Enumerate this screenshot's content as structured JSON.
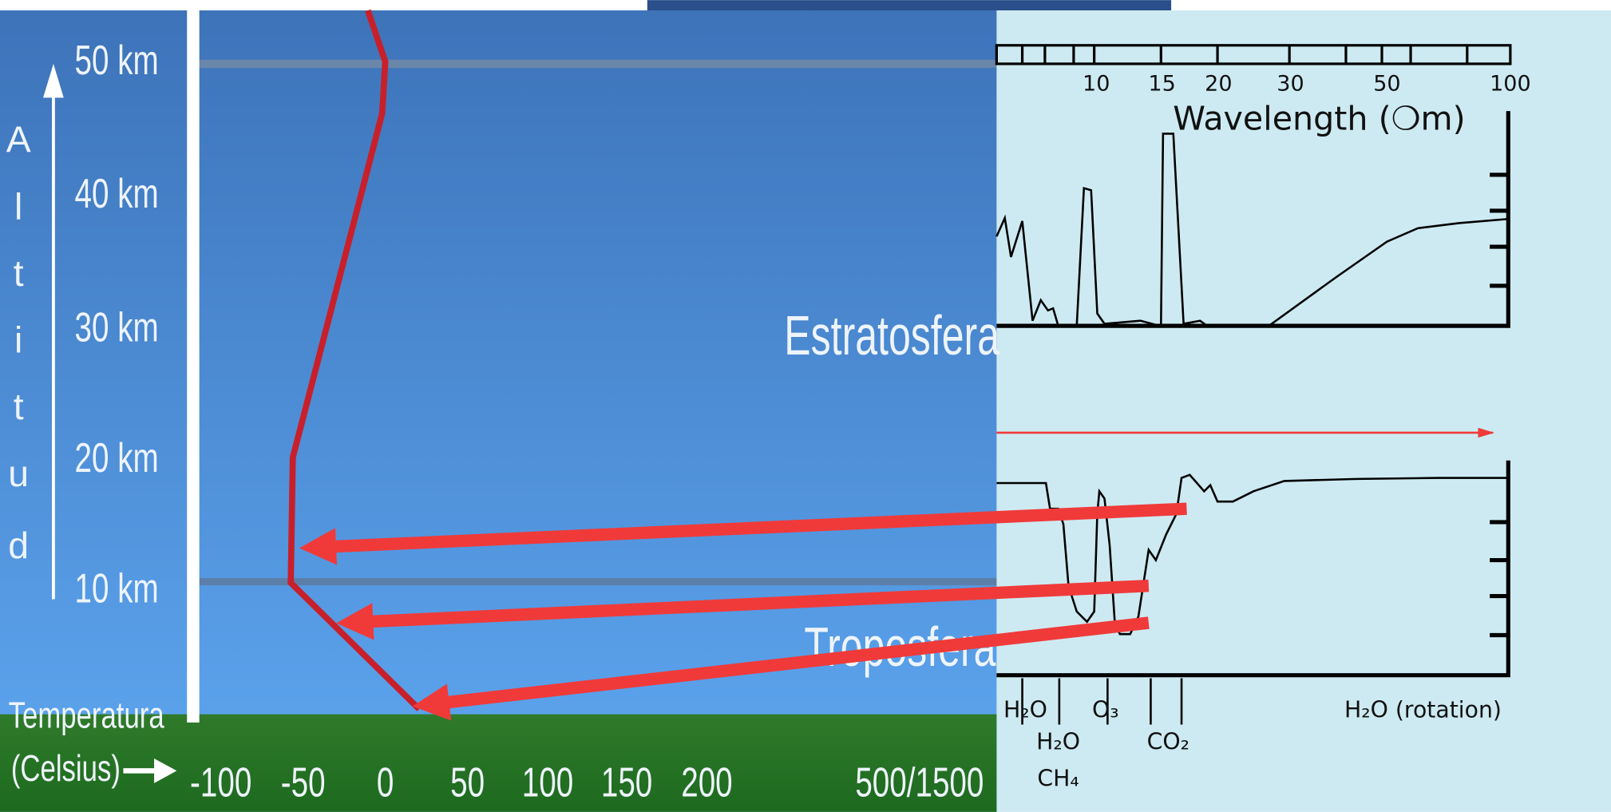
{
  "left_panel": {
    "altitude_axis_letters": [
      "A",
      "l",
      "t",
      "i",
      "t",
      "u",
      "d"
    ],
    "altitude_labels": [
      "50 km",
      "40 km",
      "30 km",
      "20 km",
      "10 km"
    ],
    "temperature_title": [
      "Temperatura",
      "(Celsius)"
    ],
    "temperature_ticks": [
      "-100",
      "-50",
      "0",
      "50",
      "100",
      "150",
      "200",
      "500/1500"
    ],
    "layers": [
      "Estratosfera",
      "Troposfera"
    ]
  },
  "right_panel": {
    "wavelength_ticks": [
      "10",
      "15",
      "20",
      "30",
      "50",
      "100"
    ],
    "wavelength_title": "Wavelength (❍m)",
    "molecules": [
      "H₂O",
      "O₃",
      "H₂O",
      "CH₄",
      "CO₂",
      "H₂O (rotation)"
    ]
  }
}
